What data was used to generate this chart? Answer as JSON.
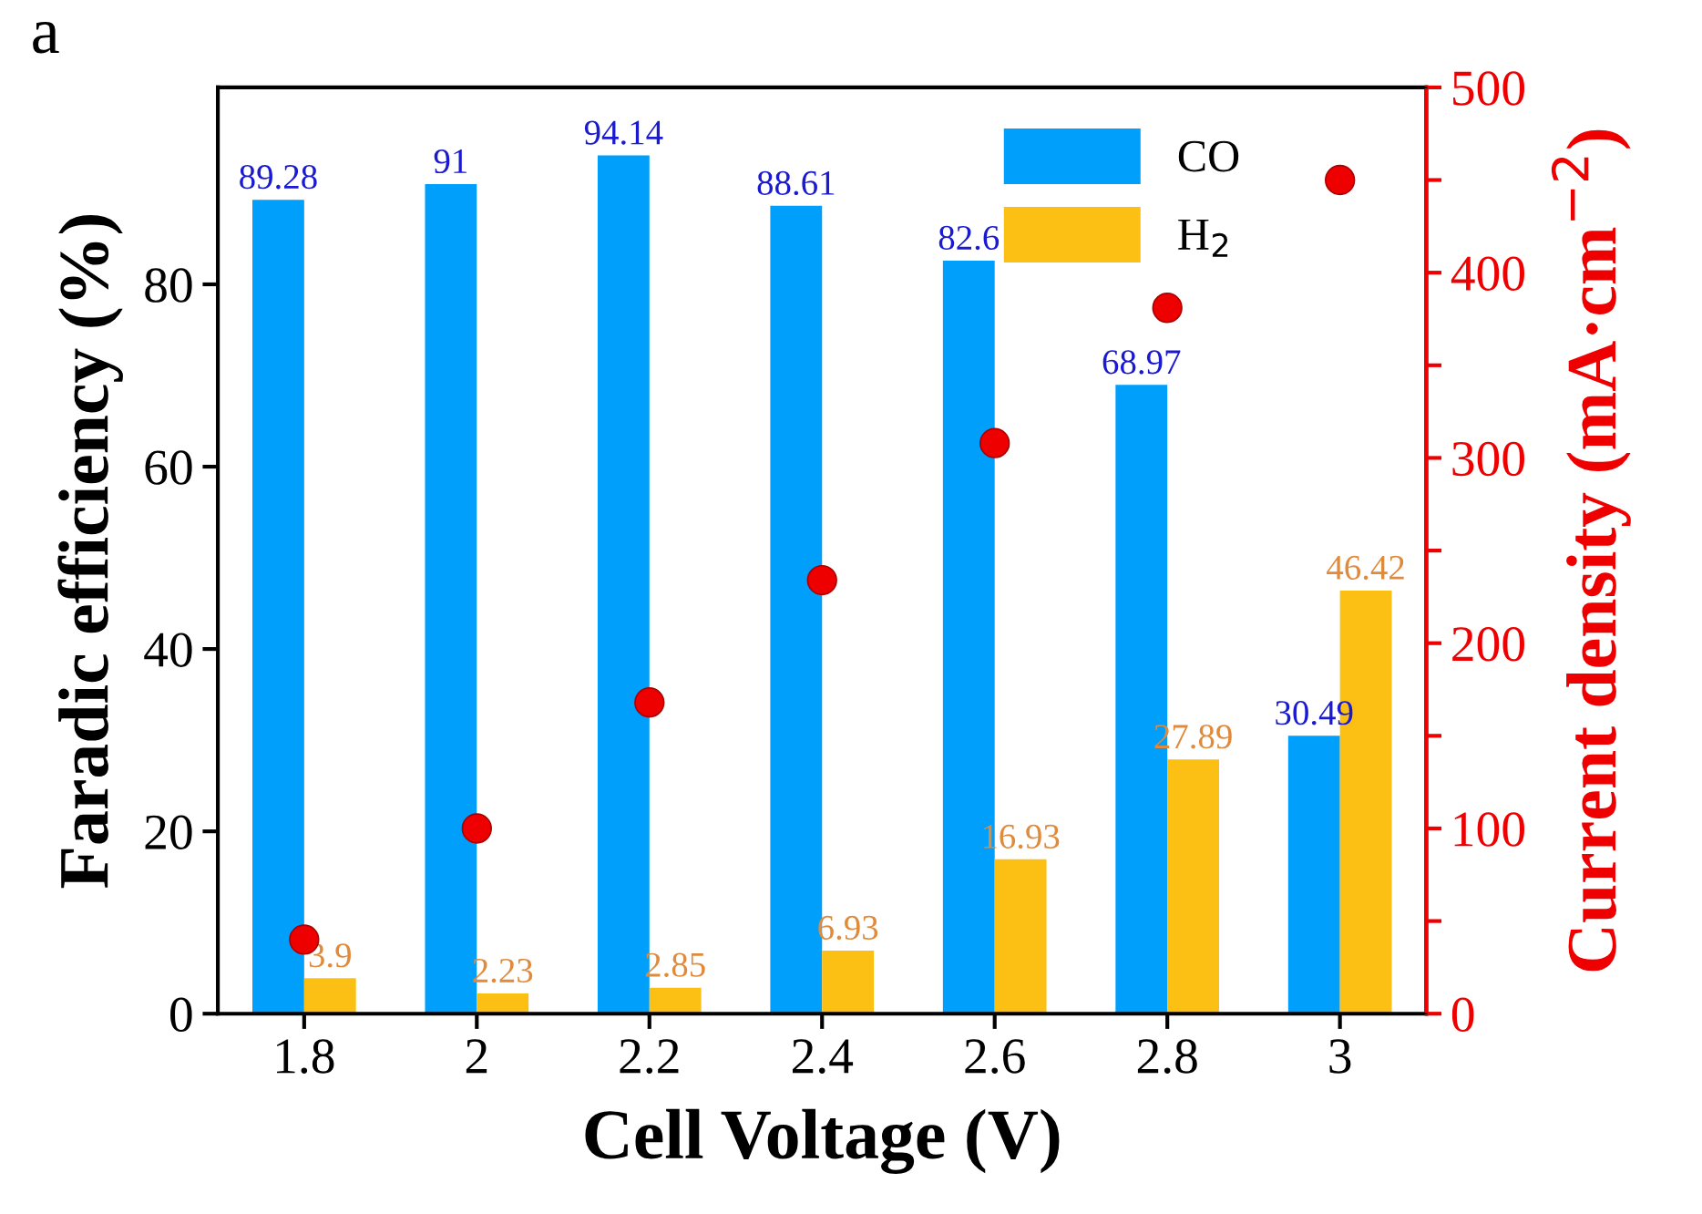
{
  "chart_data": {
    "type": "bar",
    "xlabel": "Cell Voltage (V)",
    "ylabel": "Faradic efficiency (%)",
    "y2label": "Current density (mA·cm$^{−2}$)",
    "categories": [
      "1.8",
      "2",
      "2.2",
      "2.4",
      "2.6",
      "2.8",
      "3"
    ],
    "series": [
      {
        "name": "CO",
        "color": "#009ffc",
        "values": [
          89.28,
          91,
          94.14,
          88.61,
          82.6,
          68.97,
          30.49
        ],
        "value_labels": [
          "89.28",
          "91",
          "94.14",
          "88.61",
          "82.6",
          "68.97",
          "30.49"
        ]
      },
      {
        "name": "H$_{2}$",
        "color": "#fcc014",
        "values": [
          3.9,
          2.23,
          2.85,
          6.93,
          16.93,
          27.89,
          46.42
        ],
        "value_labels": [
          "3.9",
          "2.23",
          "2.85",
          "6.93",
          "16.93",
          "27.89",
          "46.42"
        ]
      },
      {
        "type": "scatter",
        "axis": "y2",
        "color": "#ee0000",
        "x": [
          "1.8",
          "2",
          "2.2",
          "2.4",
          "2.6",
          "2.8",
          "3"
        ],
        "values": [
          40,
          100,
          168,
          234,
          308,
          381,
          450
        ]
      }
    ],
    "ylim": [
      0,
      101.6
    ],
    "yticks": [
      0,
      20,
      40,
      60,
      80
    ],
    "y2lim": [
      0,
      500
    ],
    "y2ticks": [
      0,
      {
        "value": 50,
        "label": null
      },
      100,
      {
        "value": 150,
        "label": null
      },
      200,
      {
        "value": 250,
        "label": null
      },
      300,
      {
        "value": 350,
        "label": null
      },
      400,
      {
        "value": 450,
        "label": null
      },
      500
    ],
    "legend": "top right",
    "grid": false,
    "marker": "circle",
    "annotations": [
      "a"
    ]
  }
}
